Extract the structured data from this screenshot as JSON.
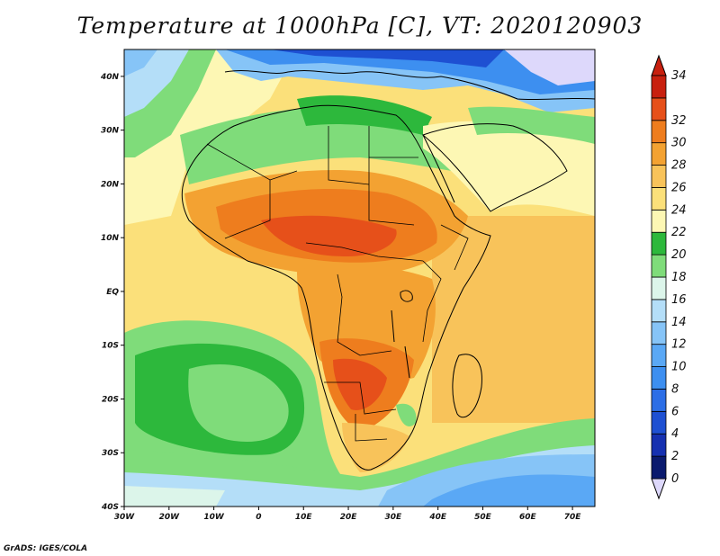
{
  "title": "Temperature at 1000hPa [C], VT: 2020120903",
  "credit": "GrADS: IGES/COLA",
  "chart_data": {
    "type": "heatmap",
    "title": "Temperature at 1000hPa [C], VT: 2020120903",
    "variable": "Temperature",
    "units": "C",
    "level": "1000hPa",
    "valid_time": "2020120903",
    "lon_range": [
      -30,
      75
    ],
    "lat_range": [
      -40,
      45
    ],
    "lon_ticks": [
      "30W",
      "20W",
      "10W",
      "0",
      "10E",
      "20E",
      "30E",
      "40E",
      "50E",
      "60E",
      "70E"
    ],
    "lat_ticks": [
      "40S",
      "30S",
      "20S",
      "10S",
      "EQ",
      "10N",
      "20N",
      "30N",
      "40N"
    ],
    "colorbar": {
      "levels": [
        0,
        2,
        4,
        6,
        8,
        10,
        12,
        14,
        16,
        18,
        20,
        22,
        24,
        26,
        28,
        30,
        32,
        34
      ],
      "labels": [
        "0",
        "2",
        "4",
        "6",
        "8",
        "10",
        "12",
        "14",
        "16",
        "18",
        "20",
        "22",
        "24",
        "26",
        "28",
        "30",
        "32",
        "34"
      ],
      "colors": [
        "#0a1a6e",
        "#1530b0",
        "#1e50d2",
        "#2c6ee6",
        "#3d8ff0",
        "#5aa8f5",
        "#86c4f7",
        "#b4def8",
        "#dcf5ea",
        "#7fdc7a",
        "#2db83c",
        "#fdf7b4",
        "#fbe07a",
        "#f8c35a",
        "#f3a232",
        "#ee7d1e",
        "#e6501a",
        "#c8200f"
      ],
      "under_color": "#ddd8fb",
      "over_color": "#c8200f"
    }
  }
}
